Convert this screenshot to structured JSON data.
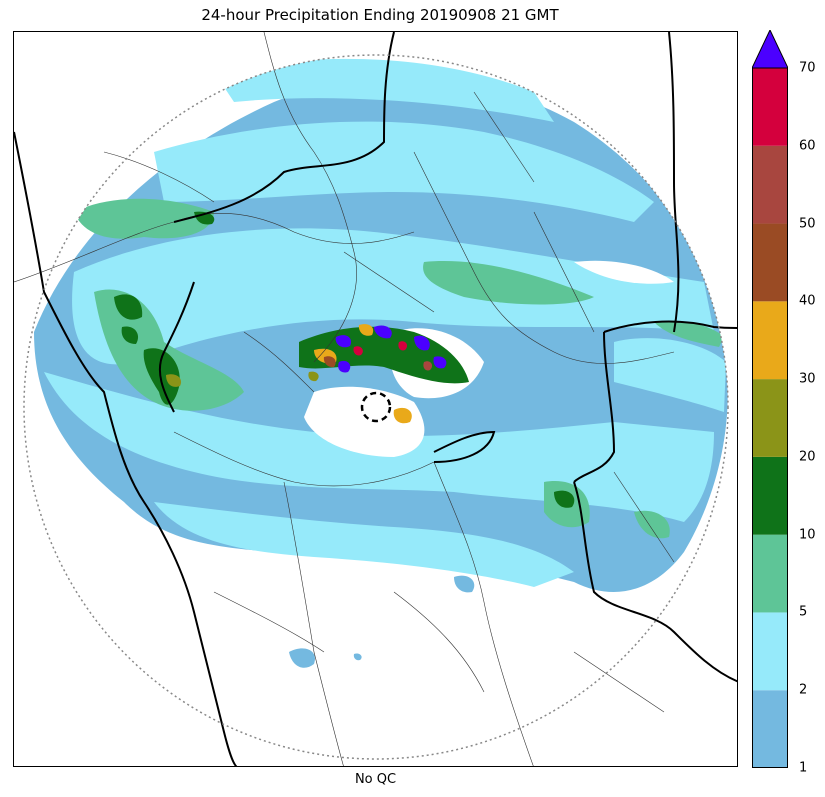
{
  "title": "24-hour Precipitation Ending 20190908 21 GMT",
  "xlabel": "No QC",
  "colorbar": {
    "levels": [
      1,
      2,
      5,
      10,
      20,
      30,
      40,
      50,
      60,
      70
    ],
    "labels": [
      "1",
      "2",
      "5",
      "10",
      "20",
      "30",
      "40",
      "50",
      "60",
      "70"
    ],
    "colors": [
      "#74b9e0",
      "#96eafa",
      "#5ec597",
      "#0f7319",
      "#8b9418",
      "#e9a91a",
      "#9a4b24",
      "#a8463f",
      "#d4003d"
    ],
    "extend_color": "#4b00ff"
  },
  "map": {
    "radar_ring": true,
    "center_marker": "dashed-circle",
    "projection_note": ""
  }
}
